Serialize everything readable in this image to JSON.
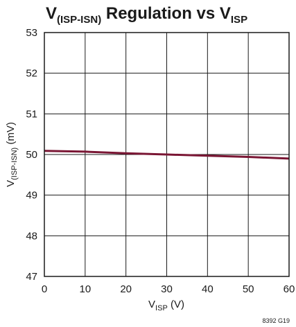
{
  "chart_data": {
    "type": "line",
    "title": {
      "main": "V",
      "main_sub": "(ISP-ISN)",
      "rest": " Regulation vs V",
      "rest_sub": "ISP"
    },
    "xlabel": {
      "main": "V",
      "sub": "ISP",
      "rest": " (V)"
    },
    "ylabel": {
      "main": "V",
      "sub": "(ISP-ISN)",
      "rest": " (mV)"
    },
    "xlim": [
      0,
      60
    ],
    "ylim": [
      47,
      53
    ],
    "x_ticks": [
      "0",
      "10",
      "20",
      "30",
      "40",
      "50",
      "60"
    ],
    "y_ticks": [
      "47",
      "48",
      "49",
      "50",
      "51",
      "52",
      "53"
    ],
    "grid": true,
    "series": [
      {
        "color": "#7a1634",
        "x": [
          0,
          10,
          20,
          30,
          40,
          50,
          60
        ],
        "y": [
          50.09,
          50.07,
          50.03,
          50.0,
          49.97,
          49.94,
          49.9
        ]
      }
    ],
    "figure_id": "8392 G19"
  }
}
